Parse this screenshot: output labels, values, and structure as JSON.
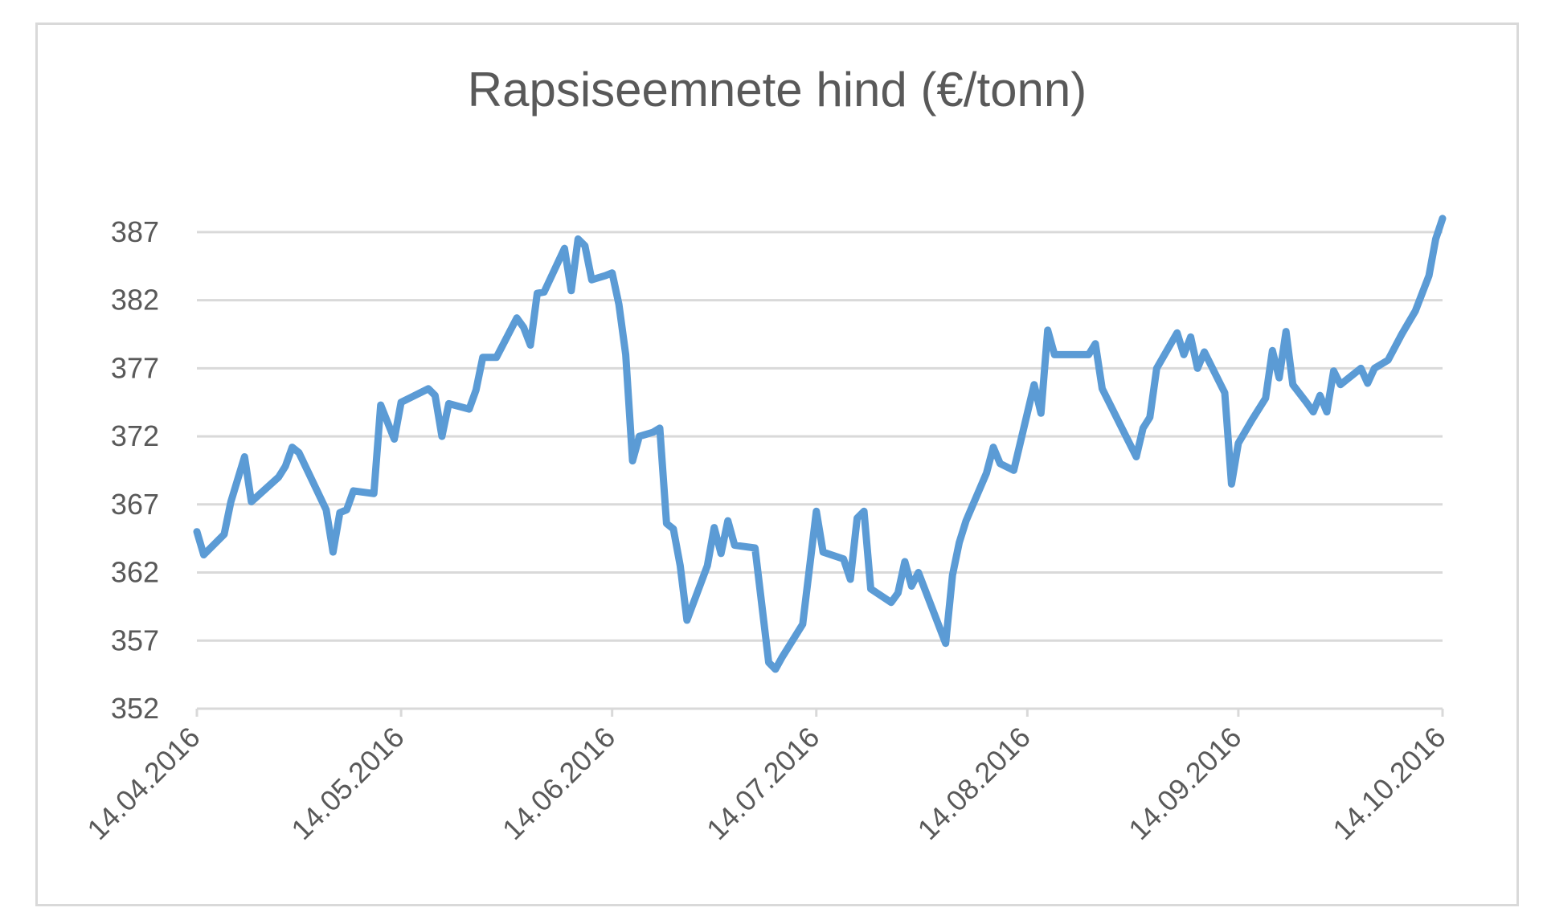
{
  "chart_data": {
    "type": "line",
    "title": "Rapsiseemnete hind (€/tonn)",
    "xlabel": "",
    "ylabel": "",
    "ylim": [
      352,
      389
    ],
    "y_ticks": [
      352,
      357,
      362,
      367,
      372,
      377,
      382,
      387
    ],
    "x_ticks": [
      "14.04.2016",
      "14.05.2016",
      "14.06.2016",
      "14.07.2016",
      "14.08.2016",
      "14.09.2016",
      "14.10.2016"
    ],
    "grid": true,
    "legend": "none",
    "line_color": "#5b9bd5",
    "series": [
      {
        "values": [
          [
            "14.04.2016",
            365.0
          ],
          [
            "15.04.2016",
            363.3
          ],
          [
            "18.04.2016",
            364.8
          ],
          [
            "19.04.2016",
            367.2
          ],
          [
            "21.04.2016",
            370.5
          ],
          [
            "22.04.2016",
            367.2
          ],
          [
            "26.04.2016",
            369.0
          ],
          [
            "27.04.2016",
            369.8
          ],
          [
            "28.04.2016",
            371.2
          ],
          [
            "29.04.2016",
            370.8
          ],
          [
            "03.05.2016",
            366.6
          ],
          [
            "04.05.2016",
            363.5
          ],
          [
            "05.05.2016",
            366.4
          ],
          [
            "06.05.2016",
            366.6
          ],
          [
            "07.05.2016",
            368.0
          ],
          [
            "10.05.2016",
            367.8
          ],
          [
            "11.05.2016",
            374.3
          ],
          [
            "13.05.2016",
            371.8
          ],
          [
            "14.05.2016",
            374.5
          ],
          [
            "18.05.2016",
            375.5
          ],
          [
            "19.05.2016",
            375.0
          ],
          [
            "20.05.2016",
            372.0
          ],
          [
            "21.05.2016",
            374.4
          ],
          [
            "24.05.2016",
            374.0
          ],
          [
            "25.05.2016",
            375.4
          ],
          [
            "26.05.2016",
            377.8
          ],
          [
            "28.05.2016",
            377.8
          ],
          [
            "31.05.2016",
            380.7
          ],
          [
            "01.06.2016",
            380.0
          ],
          [
            "02.06.2016",
            378.7
          ],
          [
            "03.06.2016",
            382.5
          ],
          [
            "04.06.2016",
            382.6
          ],
          [
            "07.06.2016",
            385.8
          ],
          [
            "08.06.2016",
            382.7
          ],
          [
            "09.06.2016",
            386.5
          ],
          [
            "10.06.2016",
            386.0
          ],
          [
            "11.06.2016",
            383.5
          ],
          [
            "13.06.2016",
            383.8
          ],
          [
            "14.06.2016",
            384.0
          ],
          [
            "15.06.2016",
            381.7
          ],
          [
            "16.06.2016",
            378.0
          ],
          [
            "17.06.2016",
            370.2
          ],
          [
            "18.06.2016",
            372.0
          ],
          [
            "20.06.2016",
            372.3
          ],
          [
            "21.06.2016",
            372.6
          ],
          [
            "22.06.2016",
            365.6
          ],
          [
            "23.06.2016",
            365.2
          ],
          [
            "24.06.2016",
            362.5
          ],
          [
            "25.06.2016",
            358.5
          ],
          [
            "28.06.2016",
            362.5
          ],
          [
            "29.06.2016",
            365.3
          ],
          [
            "30.06.2016",
            363.4
          ],
          [
            "01.07.2016",
            365.8
          ],
          [
            "02.07.2016",
            364.0
          ],
          [
            "05.07.2016",
            363.8
          ],
          [
            "07.07.2016",
            355.4
          ],
          [
            "08.07.2016",
            354.9
          ],
          [
            "09.07.2016",
            355.8
          ],
          [
            "12.07.2016",
            358.2
          ],
          [
            "14.07.2016",
            366.5
          ],
          [
            "15.07.2016",
            363.5
          ],
          [
            "18.07.2016",
            363.0
          ],
          [
            "19.07.2016",
            361.5
          ],
          [
            "20.07.2016",
            366.0
          ],
          [
            "21.07.2016",
            366.5
          ],
          [
            "22.07.2016",
            360.8
          ],
          [
            "25.07.2016",
            359.8
          ],
          [
            "26.07.2016",
            360.5
          ],
          [
            "27.07.2016",
            362.8
          ],
          [
            "28.07.2016",
            361.0
          ],
          [
            "29.07.2016",
            362.0
          ],
          [
            "02.08.2016",
            356.8
          ],
          [
            "03.08.2016",
            361.8
          ],
          [
            "04.08.2016",
            364.2
          ],
          [
            "05.08.2016",
            365.8
          ],
          [
            "08.08.2016",
            369.3
          ],
          [
            "09.08.2016",
            371.2
          ],
          [
            "10.08.2016",
            370.0
          ],
          [
            "12.08.2016",
            369.5
          ],
          [
            "15.08.2016",
            375.8
          ],
          [
            "16.08.2016",
            373.7
          ],
          [
            "17.08.2016",
            379.8
          ],
          [
            "18.08.2016",
            378.0
          ],
          [
            "23.08.2016",
            378.0
          ],
          [
            "24.08.2016",
            378.8
          ],
          [
            "25.08.2016",
            375.5
          ],
          [
            "28.08.2016",
            372.5
          ],
          [
            "30.08.2016",
            370.5
          ],
          [
            "31.08.2016",
            372.6
          ],
          [
            "01.09.2016",
            373.4
          ],
          [
            "02.09.2016",
            377.0
          ],
          [
            "05.09.2016",
            379.6
          ],
          [
            "06.09.2016",
            378.0
          ],
          [
            "07.09.2016",
            379.3
          ],
          [
            "08.09.2016",
            377.0
          ],
          [
            "09.09.2016",
            378.2
          ],
          [
            "12.09.2016",
            375.2
          ],
          [
            "13.09.2016",
            368.5
          ],
          [
            "14.09.2016",
            371.5
          ],
          [
            "16.09.2016",
            373.2
          ],
          [
            "18.09.2016",
            374.8
          ],
          [
            "19.09.2016",
            378.3
          ],
          [
            "20.09.2016",
            376.3
          ],
          [
            "21.09.2016",
            379.7
          ],
          [
            "22.09.2016",
            375.8
          ],
          [
            "24.09.2016",
            374.5
          ],
          [
            "25.09.2016",
            373.8
          ],
          [
            "26.09.2016",
            375.0
          ],
          [
            "27.09.2016",
            373.8
          ],
          [
            "28.09.2016",
            376.8
          ],
          [
            "29.09.2016",
            375.8
          ],
          [
            "02.10.2016",
            377.0
          ],
          [
            "03.10.2016",
            375.9
          ],
          [
            "04.10.2016",
            377.0
          ],
          [
            "06.10.2016",
            377.6
          ],
          [
            "08.10.2016",
            379.5
          ],
          [
            "10.10.2016",
            381.2
          ],
          [
            "12.10.2016",
            383.8
          ],
          [
            "13.10.2016",
            386.5
          ],
          [
            "14.10.2016",
            388.0
          ]
        ]
      }
    ]
  }
}
